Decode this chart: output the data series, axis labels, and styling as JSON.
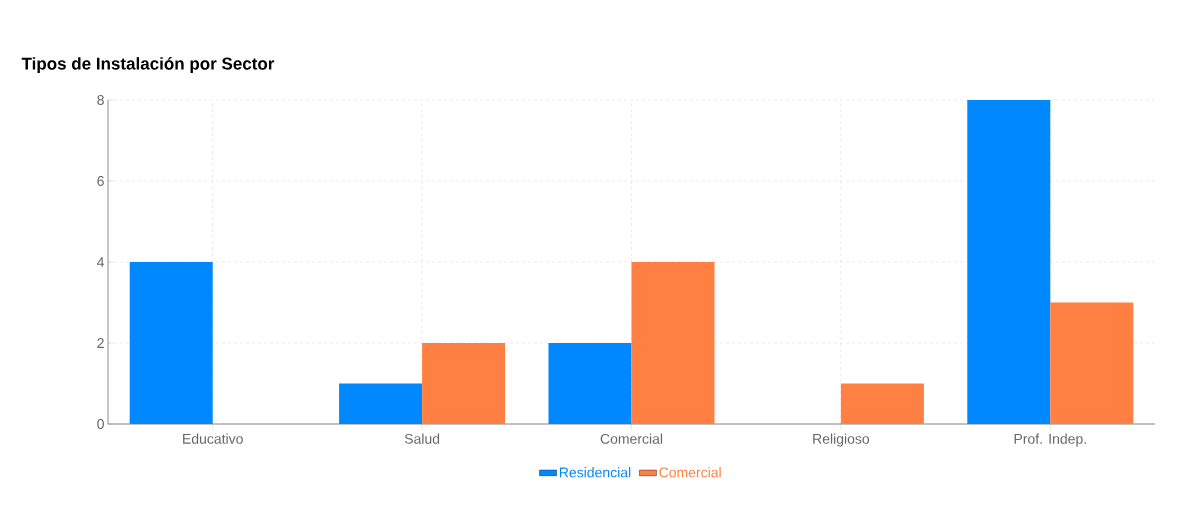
{
  "chart_data": {
    "type": "bar",
    "title": "Tipos de Instalación por Sector",
    "categories": [
      "Educativo",
      "Salud",
      "Comercial",
      "Religioso",
      "Prof. Indep."
    ],
    "series": [
      {
        "name": "Residencial",
        "color": "#0088fe",
        "values": [
          4,
          1,
          2,
          0,
          8
        ]
      },
      {
        "name": "Comercial",
        "color": "#ff8042",
        "values": [
          0,
          2,
          4,
          1,
          3
        ]
      }
    ],
    "ylim": [
      0,
      8
    ],
    "yticks": [
      0,
      2,
      4,
      6,
      8
    ],
    "grid": true,
    "legend": "bottom"
  }
}
